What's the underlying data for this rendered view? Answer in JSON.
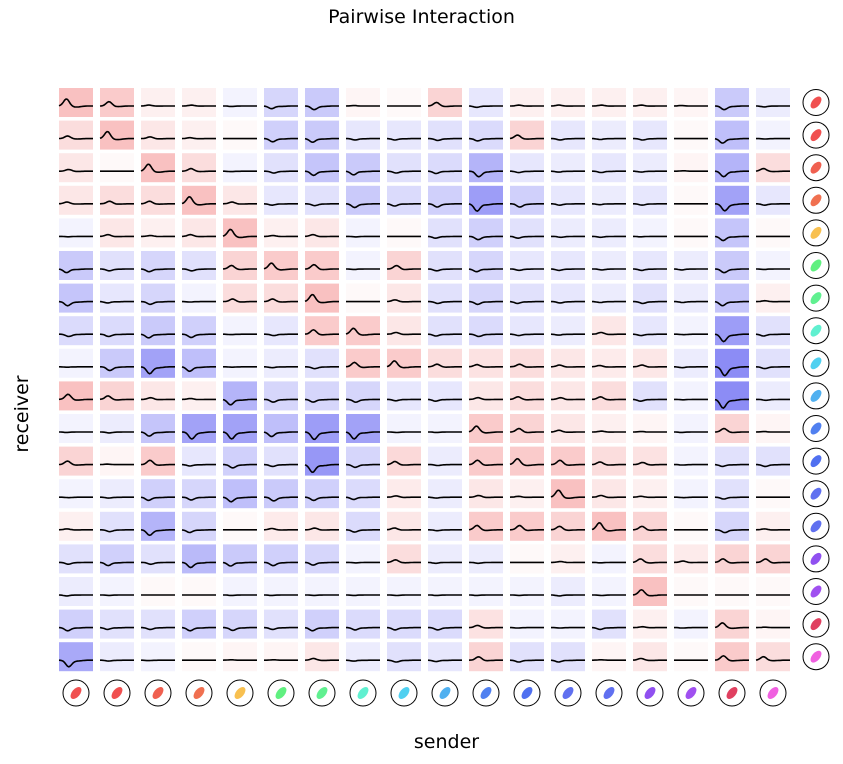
{
  "chart_data": {
    "type": "heatmap",
    "title": "Pairwise Interaction",
    "xlabel": "sender",
    "ylabel": "receiver",
    "neuron_colors": [
      "#f05050",
      "#f05050",
      "#f06050",
      "#f07050",
      "#f8c050",
      "#60f080",
      "#60f090",
      "#60f0d0",
      "#50d0f0",
      "#50b0f0",
      "#5080f0",
      "#5070f0",
      "#6070f0",
      "#6070f0",
      "#9050f0",
      "#a050f0",
      "#e04060",
      "#f060e0"
    ],
    "neg_color": "#5050f0",
    "pos_color": "#f07070",
    "matrix": [
      [
        0.6,
        0.5,
        0.1,
        0.1,
        -0.05,
        -0.3,
        -0.4,
        0.05,
        0.0,
        0.4,
        -0.15,
        0.1,
        0.1,
        0.1,
        0.1,
        0.05,
        -0.4,
        -0.1
      ],
      [
        0.3,
        0.6,
        0.2,
        0.1,
        0.0,
        -0.35,
        -0.4,
        -0.15,
        -0.15,
        -0.2,
        -0.25,
        0.4,
        -0.15,
        -0.1,
        -0.15,
        0.0,
        -0.5,
        -0.05
      ],
      [
        0.2,
        0.0,
        0.6,
        0.3,
        -0.05,
        -0.2,
        -0.45,
        -0.4,
        -0.2,
        -0.25,
        -0.6,
        -0.15,
        -0.1,
        -0.15,
        -0.1,
        0.05,
        -0.6,
        0.3
      ],
      [
        0.2,
        0.3,
        0.3,
        0.6,
        0.2,
        -0.15,
        -0.2,
        -0.4,
        -0.25,
        -0.35,
        -0.8,
        -0.35,
        -0.15,
        -0.1,
        -0.15,
        0.0,
        -0.75,
        -0.15
      ],
      [
        -0.05,
        0.2,
        0.1,
        0.2,
        0.6,
        0.1,
        0.2,
        -0.05,
        0.0,
        -0.2,
        -0.35,
        -0.2,
        -0.1,
        -0.1,
        -0.05,
        0.0,
        -0.45,
        0.0
      ],
      [
        -0.4,
        -0.2,
        -0.3,
        -0.2,
        0.4,
        0.5,
        0.5,
        -0.05,
        0.4,
        -0.2,
        -0.3,
        -0.15,
        -0.15,
        -0.1,
        -0.15,
        -0.1,
        -0.4,
        -0.05
      ],
      [
        -0.45,
        -0.15,
        -0.3,
        -0.05,
        0.3,
        0.3,
        0.6,
        0.0,
        0.2,
        -0.2,
        -0.3,
        -0.2,
        -0.15,
        -0.1,
        -0.2,
        -0.1,
        -0.45,
        0.1
      ],
      [
        -0.25,
        -0.25,
        -0.4,
        -0.35,
        -0.05,
        -0.15,
        0.5,
        0.5,
        0.2,
        -0.2,
        -0.25,
        -0.15,
        -0.1,
        0.2,
        -0.15,
        -0.05,
        -0.8,
        -0.2
      ],
      [
        -0.05,
        -0.4,
        -0.75,
        -0.5,
        -0.05,
        -0.1,
        -0.2,
        0.5,
        0.5,
        0.3,
        0.25,
        0.3,
        0.2,
        0.15,
        0.2,
        -0.1,
        -0.95,
        -0.2
      ],
      [
        0.6,
        0.4,
        0.2,
        0.1,
        -0.6,
        -0.3,
        -0.3,
        -0.3,
        -0.15,
        -0.15,
        0.2,
        0.3,
        0.2,
        0.3,
        -0.2,
        -0.05,
        -0.95,
        -0.1
      ],
      [
        -0.05,
        -0.1,
        -0.45,
        -0.75,
        -0.75,
        -0.5,
        -0.8,
        -0.75,
        -0.05,
        -0.05,
        0.5,
        0.4,
        0.2,
        0.1,
        0.05,
        -0.05,
        0.4,
        0.05
      ],
      [
        0.4,
        0.05,
        0.5,
        -0.15,
        -0.35,
        -0.2,
        -0.85,
        -0.3,
        0.35,
        -0.1,
        0.5,
        0.5,
        0.5,
        0.3,
        0.25,
        -0.05,
        -0.2,
        -0.2
      ],
      [
        -0.05,
        -0.1,
        -0.35,
        -0.3,
        -0.5,
        -0.4,
        -0.35,
        -0.25,
        0.15,
        -0.1,
        0.2,
        0.1,
        0.6,
        0.2,
        0.1,
        -0.05,
        -0.2,
        0.0
      ],
      [
        0.1,
        -0.2,
        -0.6,
        -0.3,
        0.0,
        0.15,
        0.2,
        -0.25,
        0.2,
        -0.1,
        0.5,
        0.5,
        0.4,
        0.6,
        0.4,
        0.0,
        -0.3,
        0.1
      ],
      [
        -0.2,
        -0.35,
        -0.2,
        -0.55,
        -0.4,
        -0.35,
        -0.3,
        -0.05,
        0.3,
        -0.1,
        -0.1,
        0.0,
        0.1,
        -0.05,
        0.3,
        0.15,
        0.4,
        0.4
      ],
      [
        -0.1,
        -0.05,
        0.0,
        0.0,
        -0.05,
        -0.05,
        -0.05,
        -0.05,
        -0.05,
        -0.05,
        -0.05,
        -0.05,
        -0.1,
        -0.05,
        0.6,
        0.0,
        0.0,
        0.0
      ],
      [
        -0.35,
        -0.2,
        -0.2,
        -0.35,
        -0.3,
        -0.2,
        -0.35,
        -0.25,
        -0.25,
        -0.25,
        0.25,
        -0.05,
        -0.05,
        -0.2,
        0.1,
        -0.05,
        0.4,
        0.05
      ],
      [
        -0.7,
        -0.1,
        -0.05,
        0.0,
        0.05,
        0.05,
        0.2,
        -0.1,
        -0.2,
        -0.15,
        0.4,
        -0.2,
        -0.2,
        0.05,
        0.2,
        0.0,
        0.5,
        0.3
      ]
    ]
  }
}
